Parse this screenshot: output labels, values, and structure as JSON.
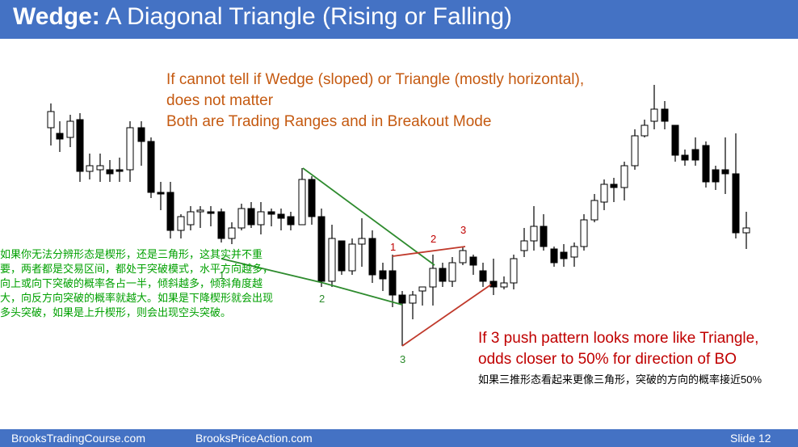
{
  "header": {
    "title_bold": "Wedge:",
    "title_rest": " A Diagonal Triangle (Rising or Falling)",
    "bg_color": "#4472c4"
  },
  "notes": {
    "orange_line1": "If cannot tell if Wedge (sloped) or Triangle (mostly horizontal),",
    "orange_line2": "does not matter",
    "orange_line3": "Both are Trading Ranges and in Breakout Mode",
    "green_cn": "如果你无法分辨形态是楔形，还是三角形，这其实并不重要，两者都是交易区间，都处于突破模式，水平方向越多，向上或向下突破的概率各占一半，倾斜越多，倾斜角度越大，向反方向突破的概率就越大。如果是下降楔形就会出现多头突破，如果是上升楔形，则会出现空头突破。",
    "red_line1": "If 3 push pattern looks more like Triangle,",
    "red_line2": "odds closer to 50% for direction of BO",
    "black_cn": "如果三推形态看起来更像三角形，突破的方向的概率接近50%"
  },
  "labels": {
    "wedge_1": "1",
    "wedge_2": "2",
    "wedge_3": "3",
    "tri_1": "1",
    "tri_2": "2",
    "tri_3": "3"
  },
  "footer": {
    "left": "BrooksTradingCourse.com",
    "mid": "BrooksPriceAction.com",
    "slide": "Slide  12"
  },
  "colors": {
    "orange": "#c55a11",
    "green": "#00a000",
    "red": "#c00000",
    "wedge_line": "#2e8b2e",
    "triangle_line": "#c0392b"
  }
}
